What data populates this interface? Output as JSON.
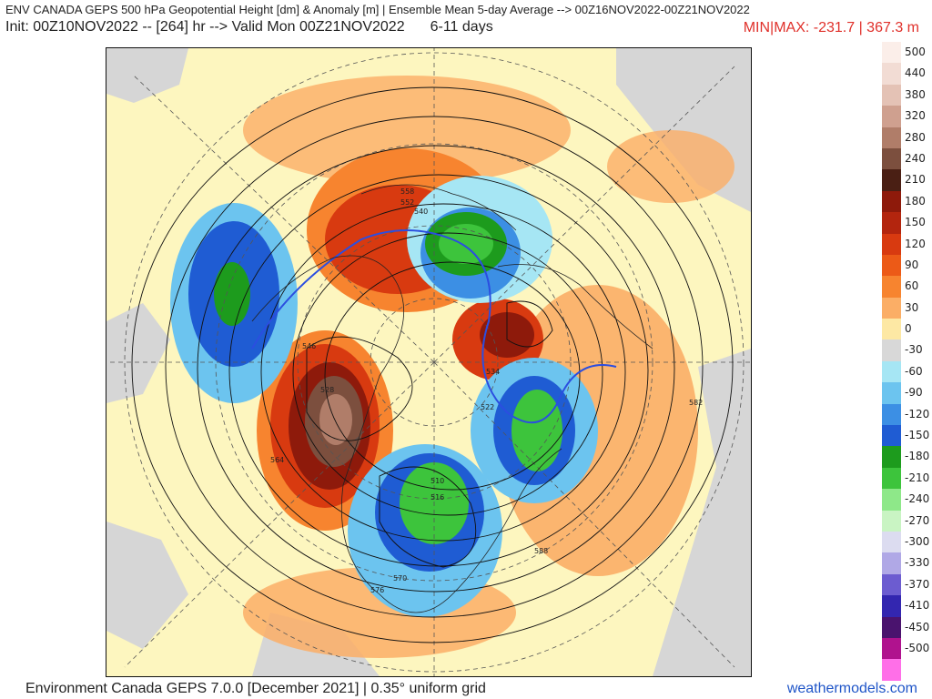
{
  "header": {
    "line1": "ENV CANADA GEPS 500 hPa Geopotential Height [dm] & Anomaly [m] | Ensemble Mean 5-day Average --> 00Z16NOV2022-00Z21NOV2022",
    "init": "Init: 00Z10NOV2022 -- [264] hr --> Valid Mon 00Z21NOV2022",
    "range": "6-11 days",
    "minmax": "MIN|MAX: -231.7 | 367.3 m"
  },
  "colorbar": [
    {
      "label": "500",
      "color": "#fbeee9"
    },
    {
      "label": "440",
      "color": "#f2dcd4"
    },
    {
      "label": "380",
      "color": "#e4c2b5"
    },
    {
      "label": "320",
      "color": "#cfa08f"
    },
    {
      "label": "280",
      "color": "#b07d69"
    },
    {
      "label": "240",
      "color": "#7c4f3e"
    },
    {
      "label": "210",
      "color": "#4a1f14"
    },
    {
      "label": "180",
      "color": "#8e1a0b"
    },
    {
      "label": "150",
      "color": "#b3250e"
    },
    {
      "label": "120",
      "color": "#d83a10"
    },
    {
      "label": "90",
      "color": "#ec5a17"
    },
    {
      "label": "60",
      "color": "#f7842f"
    },
    {
      "label": "30",
      "color": "#fbae66"
    },
    {
      "label": "0",
      "color": "#fde8a4"
    },
    {
      "label": "-30",
      "color": "#d8d8d8"
    },
    {
      "label": "-60",
      "color": "#a6e6f4"
    },
    {
      "label": "-90",
      "color": "#6cc4ef"
    },
    {
      "label": "-120",
      "color": "#3c8fe4"
    },
    {
      "label": "-150",
      "color": "#1f5cd3"
    },
    {
      "label": "-180",
      "color": "#1d9b1d"
    },
    {
      "label": "-210",
      "color": "#3dc43c"
    },
    {
      "label": "-240",
      "color": "#8ee889"
    },
    {
      "label": "-270",
      "color": "#c9f4c3"
    },
    {
      "label": "-300",
      "color": "#dcdcf0"
    },
    {
      "label": "-330",
      "color": "#b0a8e6"
    },
    {
      "label": "-370",
      "color": "#6c5cd0"
    },
    {
      "label": "-410",
      "color": "#3326b0"
    },
    {
      "label": "-450",
      "color": "#4a136e"
    },
    {
      "label": "-500",
      "color": "#b0128e"
    },
    {
      "label": "",
      "color": "#ff6fe8"
    }
  ],
  "contour_labels": [
    "588",
    "582",
    "576",
    "570",
    "564",
    "558",
    "552",
    "546",
    "540",
    "534",
    "528",
    "522",
    "516",
    "510"
  ],
  "footer": {
    "model": "Environment Canada GEPS 7.0.0 [December 2021] | 0.35° uniform grid",
    "site": "weathermodels.com"
  }
}
